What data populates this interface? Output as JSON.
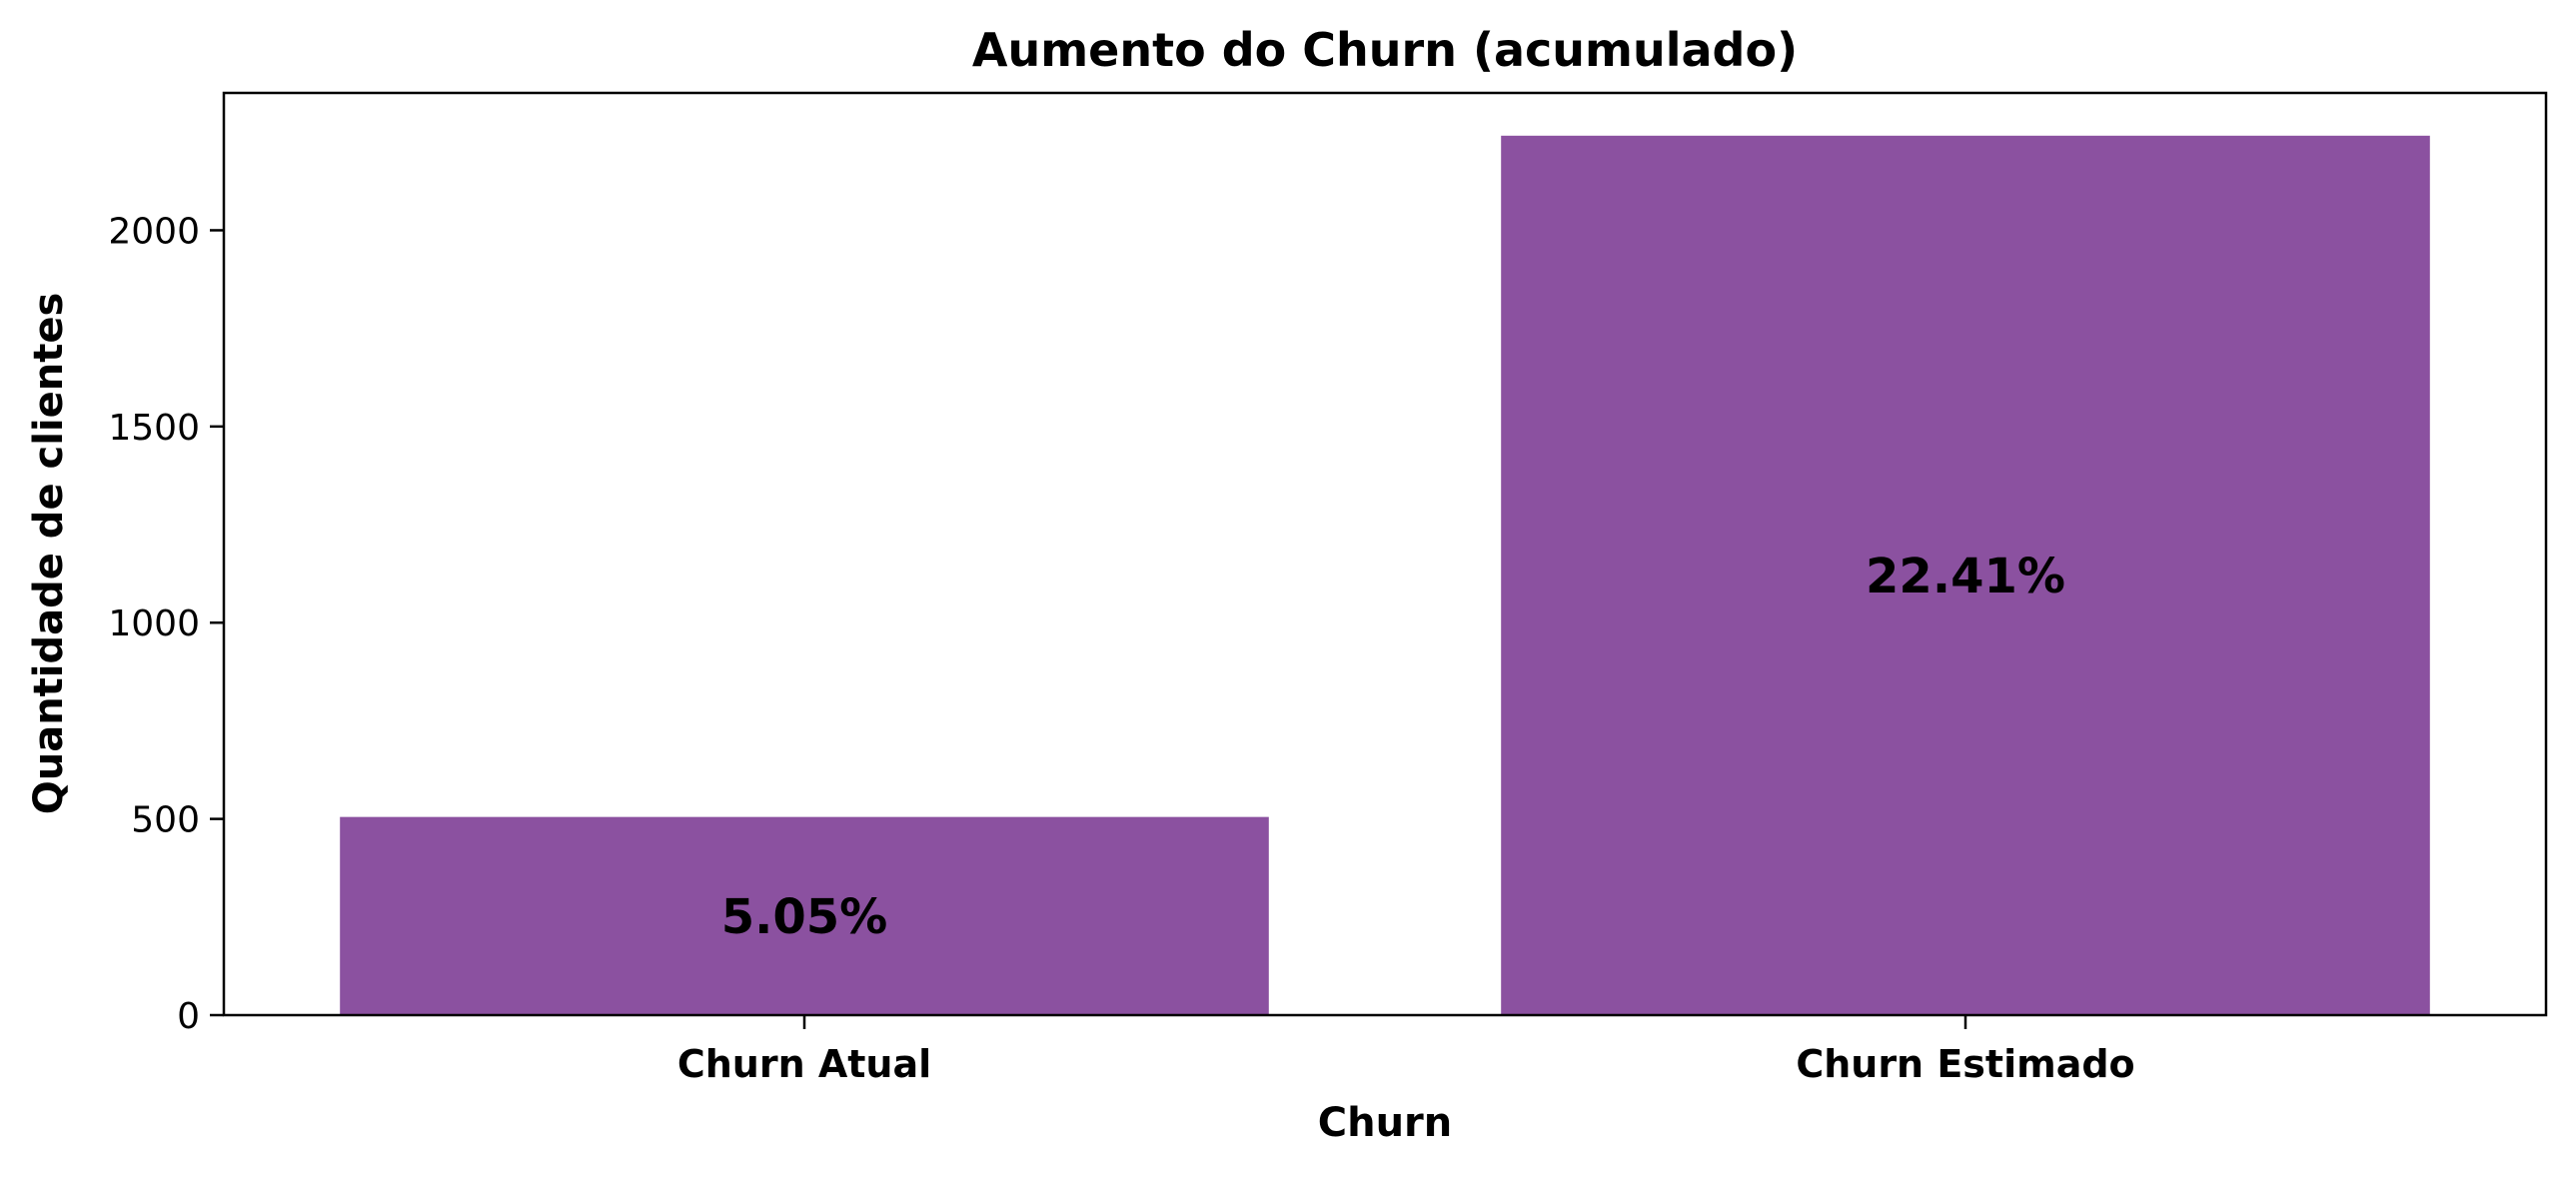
{
  "chart_data": {
    "type": "bar",
    "title": "Aumento do Churn (acumulado)",
    "xlabel": "Churn",
    "ylabel": "Quantidade de clientes",
    "categories": [
      "Churn Atual",
      "Churn Estimado"
    ],
    "values": [
      505,
      2241
    ],
    "data_labels": [
      "5.05%",
      "22.41%"
    ],
    "ylim": [
      0,
      2350
    ],
    "yticks": [
      0,
      500,
      1000,
      1500,
      2000
    ],
    "bar_color": "#8b51a0",
    "grid": false,
    "legend": "none"
  }
}
